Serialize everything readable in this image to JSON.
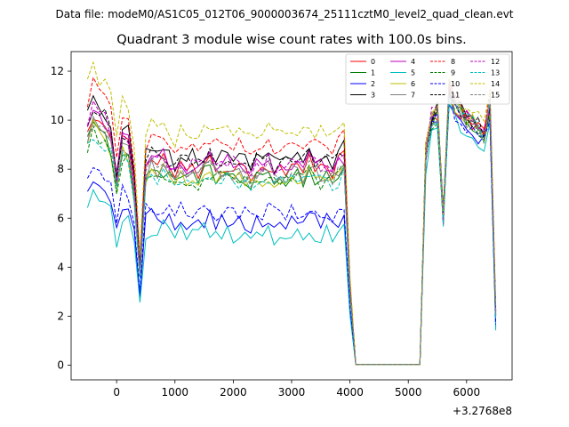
{
  "suptitle": "Data file: modeM0/AS1C05_012T06_9000003674_25111cztM0_level2_quad_clean.evt",
  "chart_data": {
    "type": "line",
    "title": "Quadrant 3 module wise count rates with 100.0s bins.",
    "xlabel": "",
    "ylabel": "",
    "x_offset_label": "+3.2768e8",
    "xlim": [
      -780,
      6780
    ],
    "ylim": [
      -0.6,
      12.8
    ],
    "xticks": [
      0,
      1000,
      2000,
      3000,
      4000,
      5000,
      6000
    ],
    "yticks": [
      0,
      2,
      4,
      6,
      8,
      10,
      12
    ],
    "grid": false,
    "legend_position": "upper right",
    "x": [
      -500,
      -400,
      -300,
      -200,
      -100,
      0,
      100,
      200,
      300,
      400,
      500,
      600,
      700,
      800,
      900,
      1000,
      1100,
      1200,
      1300,
      1400,
      1500,
      1600,
      1700,
      1800,
      1900,
      2000,
      2100,
      2200,
      2300,
      2400,
      2500,
      2600,
      2700,
      2800,
      2900,
      3000,
      3100,
      3200,
      3300,
      3400,
      3500,
      3600,
      3700,
      3800,
      3900,
      4000,
      4100,
      4200,
      4300,
      4400,
      4500,
      4600,
      4700,
      4800,
      4900,
      5000,
      5100,
      5200,
      5300,
      5400,
      5500,
      5600,
      5700,
      5800,
      5900,
      6000,
      6100,
      6200,
      6300,
      6400,
      6500
    ],
    "base_profile": [
      9.0,
      9.6,
      9.3,
      9.2,
      8.7,
      7.2,
      8.5,
      8.4,
      6.9,
      3.6,
      7.6,
      7.9,
      7.7,
      7.9,
      7.6,
      7.2,
      7.7,
      7.5,
      7.6,
      7.4,
      7.7,
      7.8,
      7.5,
      7.6,
      7.7,
      7.5,
      7.6,
      7.4,
      7.3,
      7.6,
      7.5,
      7.7,
      7.4,
      7.6,
      7.5,
      7.7,
      7.6,
      7.5,
      7.8,
      7.6,
      7.5,
      7.6,
      7.4,
      7.7,
      7.9,
      2.9,
      0.02,
      0.02,
      0.02,
      0.02,
      0.02,
      0.02,
      0.02,
      0.02,
      0.02,
      0.02,
      0.02,
      0.02,
      8.5,
      10.0,
      10.2,
      6.0,
      11.2,
      10.5,
      10.3,
      10.0,
      9.9,
      9.7,
      9.3,
      10.6,
      2.0
    ],
    "series": [
      {
        "name": "0",
        "color": "#ff0000",
        "dash": "solid",
        "level": 8.15,
        "seed": 1
      },
      {
        "name": "1",
        "color": "#008000",
        "dash": "solid",
        "level": 7.7,
        "seed": 2
      },
      {
        "name": "2",
        "color": "#0000ff",
        "dash": "solid",
        "level": 5.85,
        "seed": 3
      },
      {
        "name": "3",
        "color": "#000000",
        "dash": "solid",
        "level": 8.55,
        "seed": 4
      },
      {
        "name": "4",
        "color": "#bf00bf",
        "dash": "solid",
        "level": 8.2,
        "seed": 5
      },
      {
        "name": "5",
        "color": "#00bfbf",
        "dash": "solid",
        "level": 5.4,
        "seed": 6
      },
      {
        "name": "6",
        "color": "#bfbf00",
        "dash": "solid",
        "level": 7.7,
        "seed": 7
      },
      {
        "name": "7",
        "color": "#808080",
        "dash": "solid",
        "level": 7.85,
        "seed": 8
      },
      {
        "name": "8",
        "color": "#ff0000",
        "dash": "dashed",
        "level": 9.05,
        "seed": 9
      },
      {
        "name": "9",
        "color": "#008000",
        "dash": "dashed",
        "level": 7.6,
        "seed": 10
      },
      {
        "name": "10",
        "color": "#0000ff",
        "dash": "dashed",
        "level": 6.3,
        "seed": 11
      },
      {
        "name": "11",
        "color": "#000000",
        "dash": "dashed",
        "level": 8.35,
        "seed": 12
      },
      {
        "name": "12",
        "color": "#bf00bf",
        "dash": "dashed",
        "level": 8.3,
        "seed": 13
      },
      {
        "name": "13",
        "color": "#00bfbf",
        "dash": "dashed",
        "level": 7.5,
        "seed": 14
      },
      {
        "name": "14",
        "color": "#bfbf00",
        "dash": "dashed",
        "level": 9.6,
        "seed": 15
      },
      {
        "name": "15",
        "color": "#808080",
        "dash": "dashed",
        "level": 7.9,
        "seed": 16
      }
    ]
  }
}
